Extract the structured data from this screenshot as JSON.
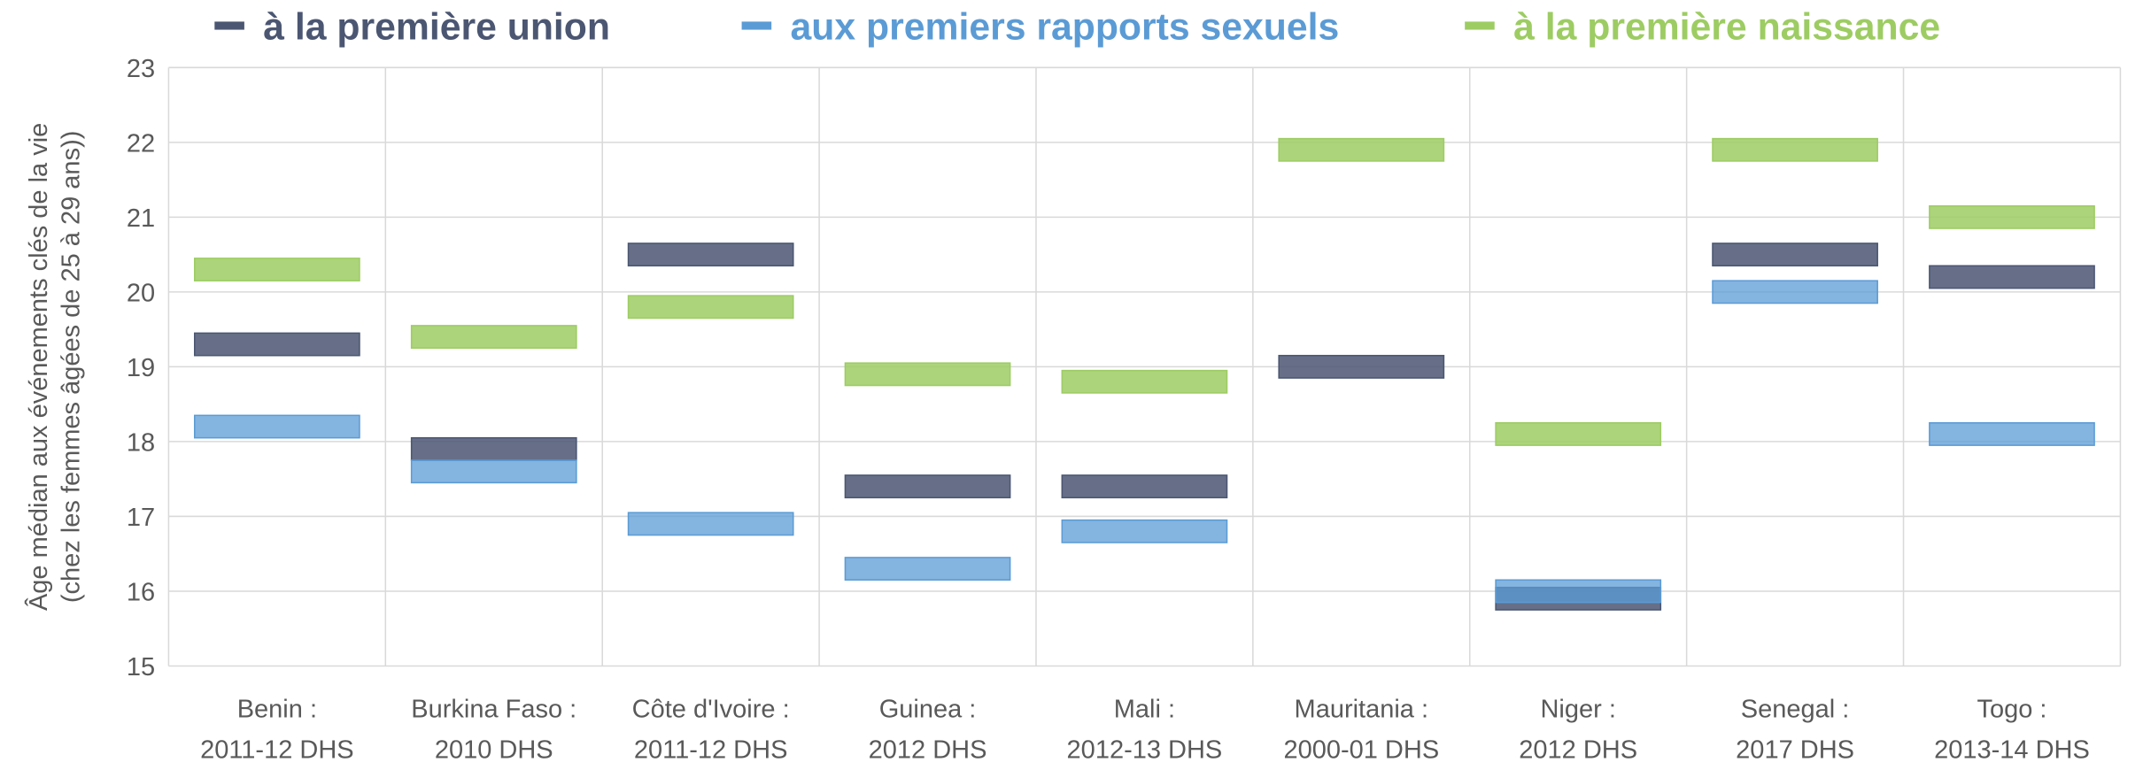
{
  "chart_data": {
    "type": "floating-bar",
    "y_label": [
      "Âge médian aux événements clés de la vie",
      "(chez les femmes âgées de 25 à 29 ans))"
    ],
    "categories": [
      [
        "Benin :",
        "2011-12 DHS"
      ],
      [
        "Burkina Faso :",
        "2010 DHS"
      ],
      [
        "Côte d'Ivoire :",
        "2011-12 DHS"
      ],
      [
        "Guinea :",
        "2012 DHS"
      ],
      [
        "Mali :",
        "2012-13 DHS"
      ],
      [
        "Mauritania :",
        "2000-01 DHS"
      ],
      [
        "Niger :",
        "2012 DHS"
      ],
      [
        "Senegal :",
        "2017 DHS"
      ],
      [
        "Togo :",
        "2013-14 DHS"
      ]
    ],
    "series": [
      {
        "name": "à la première union",
        "color": "#4b5672",
        "values": [
          19.3,
          17.9,
          20.5,
          17.4,
          17.4,
          19.0,
          15.9,
          20.5,
          20.2
        ]
      },
      {
        "name": "aux premiers rapports sexuels",
        "color": "#5b9bd5",
        "values": [
          18.2,
          17.6,
          16.9,
          16.3,
          16.8,
          null,
          16.0,
          20.0,
          18.1
        ]
      },
      {
        "name": "à la première naissance",
        "color": "#9dcc63",
        "values": [
          20.3,
          19.4,
          19.8,
          18.9,
          18.8,
          21.9,
          18.1,
          21.9,
          21.0
        ]
      }
    ],
    "ylim": [
      15,
      23
    ],
    "yticks": [
      15,
      16,
      17,
      18,
      19,
      20,
      21,
      22,
      23
    ],
    "grid": true,
    "legend": "top"
  }
}
